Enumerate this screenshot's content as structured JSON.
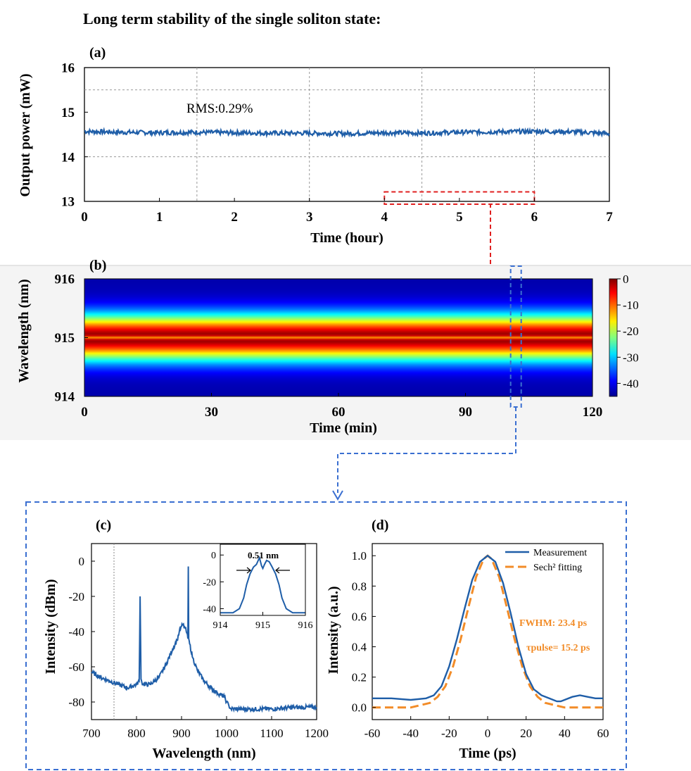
{
  "title": "Long term stability of the single soliton state:",
  "colors": {
    "series": "#1f5ea8",
    "fit": "#f28c28",
    "annotation_red": "#e02020",
    "annotation_blue": "#3a6fd1",
    "grid": "#999999"
  },
  "chart_data": [
    {
      "id": "a",
      "panel_label": "(a)",
      "type": "line",
      "xlabel": "Time (hour)",
      "ylabel": "Output power (mW)",
      "xlim": [
        0,
        7
      ],
      "ylim": [
        13,
        16
      ],
      "xticks": [
        0,
        1,
        2,
        3,
        4,
        5,
        6,
        7
      ],
      "yticks": [
        13,
        14,
        15,
        16
      ],
      "grid": true,
      "annotation": "RMS:0.29%",
      "series": [
        {
          "x": [
            0,
            0.5,
            1,
            1.5,
            2,
            2.5,
            3,
            3.5,
            4,
            4.5,
            5,
            5.5,
            6,
            6.5,
            7
          ],
          "y": [
            14.57,
            14.55,
            14.54,
            14.55,
            14.54,
            14.53,
            14.53,
            14.52,
            14.54,
            14.53,
            14.55,
            14.56,
            14.57,
            14.56,
            14.52
          ],
          "noise_amplitude": 0.05
        }
      ],
      "highlight_box": {
        "x": [
          4,
          6
        ],
        "y": [
          13,
          13.15
        ]
      }
    },
    {
      "id": "b",
      "panel_label": "(b)",
      "type": "heatmap",
      "xlabel": "Time (min)",
      "ylabel": "Wavelength (nm)",
      "xlim": [
        0,
        120
      ],
      "ylim": [
        914,
        916
      ],
      "xticks": [
        0,
        30,
        60,
        90,
        120
      ],
      "yticks": [
        914,
        915,
        916
      ],
      "colorbar": {
        "range": [
          -45,
          0
        ],
        "ticks": [
          0,
          -10,
          -20,
          -30,
          -40
        ]
      },
      "profile": {
        "center": 915.0,
        "fwhm": 0.51,
        "dip_depth": 3,
        "floor": -43
      },
      "highlight_box": {
        "x": [
          101,
          102.5
        ]
      }
    },
    {
      "id": "c",
      "panel_label": "(c)",
      "type": "line",
      "xlabel": "Wavelength (nm)",
      "ylabel": "Intensity (dBm)",
      "xlim": [
        700,
        1200
      ],
      "ylim": [
        -90,
        10
      ],
      "xticks": [
        700,
        800,
        900,
        1000,
        1100,
        1200
      ],
      "yticks": [
        0,
        -20,
        -40,
        -60,
        -80
      ],
      "vline": 750,
      "series": [
        {
          "x": [
            700,
            720,
            740,
            760,
            780,
            800,
            806,
            808,
            810,
            812,
            815,
            830,
            850,
            865,
            880,
            890,
            895,
            900,
            903,
            908,
            912,
            914,
            915,
            916,
            918,
            925,
            935,
            950,
            965,
            980,
            995,
            1000,
            1005,
            1010,
            1050,
            1100,
            1150,
            1200
          ],
          "y": [
            -63,
            -66,
            -68,
            -70,
            -72,
            -70,
            -68,
            -20,
            -67,
            -69,
            -70,
            -70,
            -66,
            -59,
            -50,
            -45,
            -40,
            -37,
            -36,
            -38,
            -41,
            -44,
            -3,
            -44,
            -47,
            -55,
            -62,
            -68,
            -72,
            -75,
            -77,
            -80,
            -82,
            -84,
            -84,
            -84,
            -83,
            -83
          ],
          "noise_amplitude": 1.2
        }
      ],
      "inset": {
        "xlim": [
          914,
          916
        ],
        "ylim": [
          -45,
          8
        ],
        "xticks": [
          914,
          915,
          916
        ],
        "yticks": [
          0,
          -20,
          -40
        ],
        "annotation": "0.51 nm",
        "series": [
          {
            "x": [
              914.0,
              914.3,
              914.45,
              914.55,
              914.62,
              914.7,
              914.78,
              914.85,
              914.92,
              914.97,
              915.0,
              915.04,
              915.09,
              915.15,
              915.22,
              915.3,
              915.38,
              915.45,
              915.55,
              915.7,
              916.0
            ],
            "y": [
              -43,
              -43,
              -40,
              -32,
              -22,
              -14,
              -9,
              -7,
              -2,
              -8,
              -10,
              -7,
              -4,
              -5,
              -9,
              -14,
              -22,
              -32,
              -40,
              -43,
              -43
            ]
          }
        ]
      }
    },
    {
      "id": "d",
      "panel_label": "(d)",
      "type": "line",
      "xlabel": "Time (ps)",
      "ylabel": "Intensity (a.u.)",
      "xlim": [
        -60,
        60
      ],
      "ylim": [
        -0.08,
        1.08
      ],
      "xticks": [
        -60,
        -40,
        -20,
        0,
        20,
        40,
        60
      ],
      "yticks": [
        0.0,
        0.2,
        0.4,
        0.6,
        0.8,
        1.0
      ],
      "legend": {
        "position": "top-right",
        "entries": [
          "Measurement",
          "Sech² fitting"
        ]
      },
      "annotations": [
        "FWHM: 23.4 ps",
        "τpulse= 15.2 ps"
      ],
      "series": [
        {
          "name": "Measurement",
          "x": [
            -60,
            -50,
            -40,
            -32,
            -28,
            -24,
            -20,
            -16,
            -12,
            -8,
            -4,
            0,
            4,
            8,
            12,
            16,
            20,
            24,
            28,
            32,
            36,
            38,
            40,
            44,
            48,
            52,
            56,
            60
          ],
          "y": [
            0.06,
            0.06,
            0.05,
            0.06,
            0.08,
            0.14,
            0.27,
            0.45,
            0.65,
            0.84,
            0.96,
            1.0,
            0.96,
            0.82,
            0.62,
            0.4,
            0.22,
            0.12,
            0.08,
            0.06,
            0.04,
            0.04,
            0.05,
            0.07,
            0.08,
            0.07,
            0.06,
            0.06
          ]
        },
        {
          "name": "Sech² fitting",
          "x": [
            -60,
            -50,
            -40,
            -30,
            -26,
            -22,
            -18,
            -14,
            -10,
            -6,
            -2,
            0,
            2,
            6,
            10,
            14,
            18,
            22,
            26,
            30,
            40,
            50,
            60
          ],
          "y": [
            0.0,
            0.0,
            0.0,
            0.03,
            0.07,
            0.14,
            0.27,
            0.45,
            0.66,
            0.86,
            0.98,
            1.0,
            0.98,
            0.86,
            0.66,
            0.45,
            0.27,
            0.14,
            0.07,
            0.03,
            0.0,
            0.0,
            0.0
          ]
        }
      ]
    }
  ]
}
